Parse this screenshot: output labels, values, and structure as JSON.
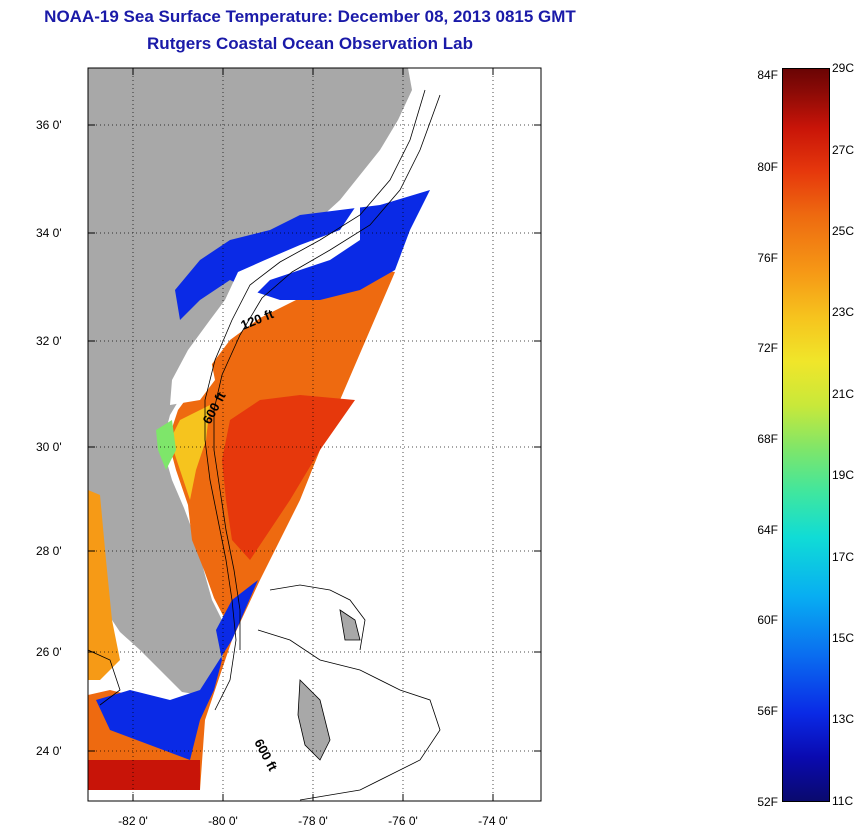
{
  "title": {
    "line1": "NOAA-19 Sea Surface Temperature:  December 08, 2013 0815 GMT",
    "line2": "Rutgers Coastal Ocean Observation Lab"
  },
  "map": {
    "lat_labels": [
      "36 0'",
      "34 0'",
      "32 0'",
      "30 0'",
      "28 0'",
      "26 0'",
      "24 0'"
    ],
    "lon_labels": [
      "-82 0'",
      "-80 0'",
      "-78 0'",
      "-76 0'",
      "-74 0'"
    ],
    "contour_labels": [
      "120 ft",
      "600 ft",
      "600 ft"
    ],
    "colors": {
      "land": "#a8a8a8",
      "background": "#ffffff",
      "cloud": "#ffffff"
    }
  },
  "colorbar": {
    "f_labels": [
      "84F",
      "80F",
      "76F",
      "72F",
      "68F",
      "64F",
      "60F",
      "56F",
      "52F"
    ],
    "c_labels": [
      "29C",
      "27C",
      "25C",
      "23C",
      "21C",
      "19C",
      "17C",
      "15C",
      "13C",
      "11C"
    ],
    "min_c": 11,
    "max_c": 29,
    "min_f": 52,
    "max_f": 84
  }
}
